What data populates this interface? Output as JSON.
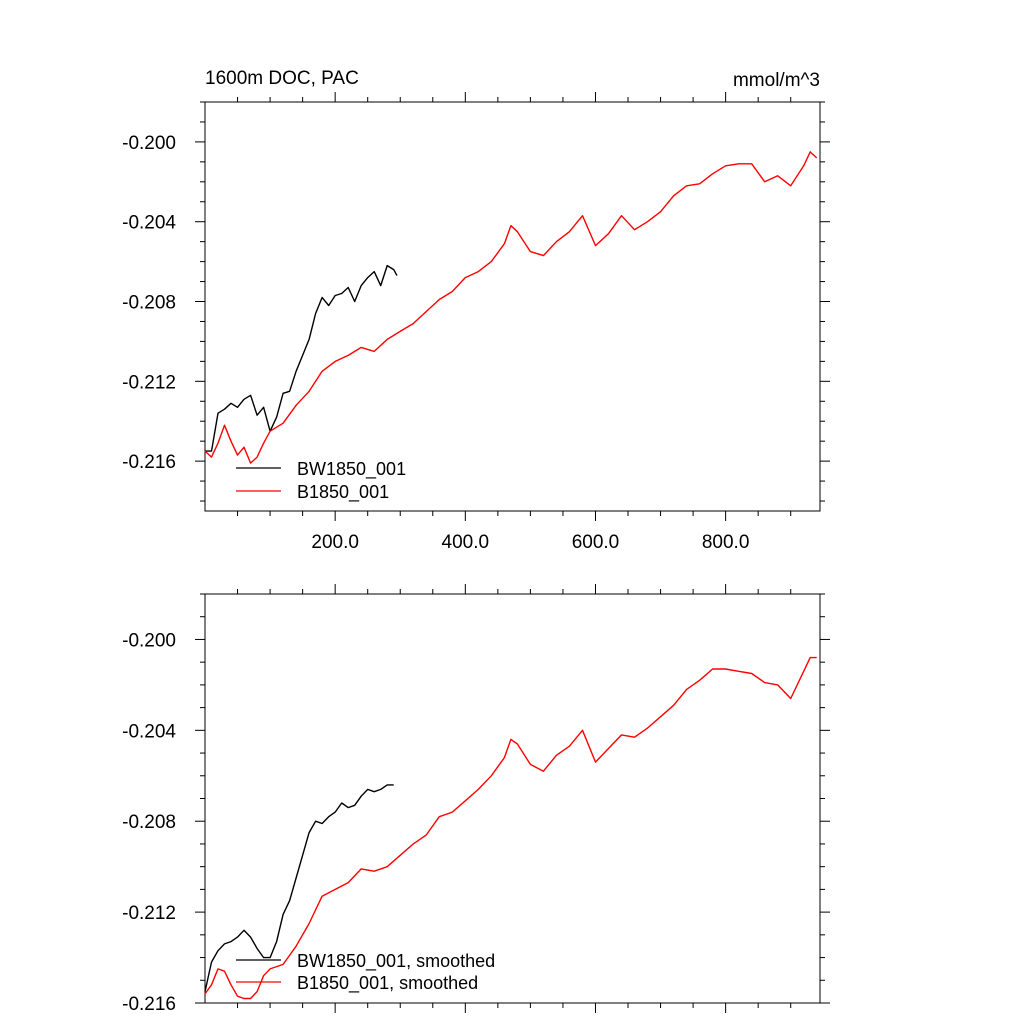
{
  "chart_data": [
    {
      "type": "line",
      "title_left": "1600m DOC, PAC",
      "title_right": "mmol/m^3",
      "xlim": [
        0,
        945
      ],
      "ylim": [
        -0.2185,
        -0.198
      ],
      "xticks": [
        200,
        400,
        600,
        800
      ],
      "xtick_labels": [
        "200.0",
        "400.0",
        "600.0",
        "800.0"
      ],
      "yticks": [
        -0.2,
        -0.204,
        -0.208,
        -0.212,
        -0.216
      ],
      "ytick_labels": [
        "-0.200",
        "-0.204",
        "-0.208",
        "-0.212",
        "-0.216"
      ],
      "legend_position": "bottom-left",
      "series": [
        {
          "name": "BW1850_001",
          "color": "#000000",
          "x": [
            0,
            10,
            20,
            30,
            40,
            50,
            60,
            70,
            80,
            90,
            100,
            110,
            120,
            130,
            140,
            150,
            160,
            170,
            180,
            190,
            200,
            210,
            220,
            230,
            240,
            250,
            260,
            270,
            280,
            290,
            295
          ],
          "y": [
            -0.2155,
            -0.2155,
            -0.2136,
            -0.2134,
            -0.2131,
            -0.2133,
            -0.2129,
            -0.2127,
            -0.2137,
            -0.2133,
            -0.2145,
            -0.2138,
            -0.2126,
            -0.2125,
            -0.2115,
            -0.2107,
            -0.2099,
            -0.2086,
            -0.2078,
            -0.2082,
            -0.2077,
            -0.2076,
            -0.2073,
            -0.208,
            -0.2072,
            -0.2068,
            -0.2065,
            -0.2072,
            -0.2062,
            -0.2064,
            -0.2067
          ]
        },
        {
          "name": "B1850_001",
          "color": "#ff0000",
          "x": [
            0,
            10,
            20,
            30,
            40,
            50,
            60,
            70,
            80,
            90,
            100,
            120,
            140,
            160,
            180,
            200,
            220,
            240,
            260,
            280,
            300,
            320,
            340,
            360,
            380,
            400,
            420,
            440,
            460,
            470,
            480,
            500,
            520,
            540,
            560,
            580,
            600,
            620,
            640,
            660,
            680,
            700,
            720,
            740,
            760,
            780,
            800,
            820,
            840,
            860,
            880,
            900,
            920,
            930,
            940
          ],
          "y": [
            -0.2155,
            -0.2158,
            -0.2151,
            -0.2142,
            -0.215,
            -0.2157,
            -0.2153,
            -0.2161,
            -0.2158,
            -0.2151,
            -0.2145,
            -0.2141,
            -0.2132,
            -0.2125,
            -0.2115,
            -0.211,
            -0.2107,
            -0.2103,
            -0.2105,
            -0.2099,
            -0.2095,
            -0.2091,
            -0.2085,
            -0.2079,
            -0.2075,
            -0.2068,
            -0.2065,
            -0.206,
            -0.2051,
            -0.2042,
            -0.2045,
            -0.2055,
            -0.2057,
            -0.205,
            -0.2045,
            -0.2037,
            -0.2052,
            -0.2046,
            -0.2037,
            -0.2044,
            -0.204,
            -0.2035,
            -0.2027,
            -0.2022,
            -0.2021,
            -0.2016,
            -0.2012,
            -0.2011,
            -0.2011,
            -0.202,
            -0.2017,
            -0.2022,
            -0.2012,
            -0.2005,
            -0.2008
          ]
        }
      ]
    },
    {
      "type": "line",
      "xlim": [
        0,
        945
      ],
      "ylim": [
        -0.216,
        -0.198
      ],
      "xticks": [
        200,
        400,
        600,
        800
      ],
      "yticks": [
        -0.2,
        -0.204,
        -0.208,
        -0.212,
        -0.216
      ],
      "ytick_labels": [
        "-0.200",
        "-0.204",
        "-0.208",
        "-0.212",
        "-0.216"
      ],
      "legend_position": "bottom-left",
      "series": [
        {
          "name": "BW1850_001, smoothed",
          "color": "#000000",
          "x": [
            0,
            10,
            20,
            30,
            40,
            50,
            60,
            70,
            80,
            90,
            100,
            110,
            120,
            130,
            140,
            150,
            160,
            170,
            180,
            190,
            200,
            210,
            220,
            230,
            240,
            250,
            260,
            270,
            280,
            290
          ],
          "y": [
            -0.2155,
            -0.2142,
            -0.2137,
            -0.2134,
            -0.2133,
            -0.2131,
            -0.2128,
            -0.2131,
            -0.2136,
            -0.214,
            -0.214,
            -0.2133,
            -0.2121,
            -0.2115,
            -0.2105,
            -0.2095,
            -0.2085,
            -0.208,
            -0.2081,
            -0.2078,
            -0.2076,
            -0.2072,
            -0.2074,
            -0.2073,
            -0.2069,
            -0.2066,
            -0.2067,
            -0.2066,
            -0.2064,
            -0.2064
          ]
        },
        {
          "name": "B1850_001, smoothed",
          "color": "#ff0000",
          "x": [
            0,
            10,
            20,
            30,
            40,
            50,
            60,
            70,
            80,
            90,
            100,
            120,
            140,
            160,
            180,
            200,
            220,
            240,
            260,
            280,
            300,
            320,
            340,
            360,
            380,
            400,
            420,
            440,
            460,
            470,
            480,
            500,
            520,
            540,
            560,
            580,
            600,
            620,
            640,
            660,
            680,
            700,
            720,
            740,
            760,
            780,
            800,
            820,
            840,
            860,
            880,
            900,
            920,
            930,
            940
          ],
          "y": [
            -0.2156,
            -0.2152,
            -0.2145,
            -0.2146,
            -0.2152,
            -0.2157,
            -0.2158,
            -0.2158,
            -0.2155,
            -0.2148,
            -0.2145,
            -0.2143,
            -0.2135,
            -0.2125,
            -0.2113,
            -0.211,
            -0.2107,
            -0.2101,
            -0.2102,
            -0.21,
            -0.2095,
            -0.209,
            -0.2086,
            -0.2078,
            -0.2076,
            -0.2071,
            -0.2066,
            -0.206,
            -0.2052,
            -0.2044,
            -0.2046,
            -0.2055,
            -0.2058,
            -0.2051,
            -0.2047,
            -0.204,
            -0.2054,
            -0.2048,
            -0.2042,
            -0.2043,
            -0.2039,
            -0.2034,
            -0.2029,
            -0.2022,
            -0.2018,
            -0.2013,
            -0.2013,
            -0.2014,
            -0.2015,
            -0.2019,
            -0.202,
            -0.2026,
            -0.2014,
            -0.2008,
            -0.2008
          ]
        }
      ]
    }
  ]
}
